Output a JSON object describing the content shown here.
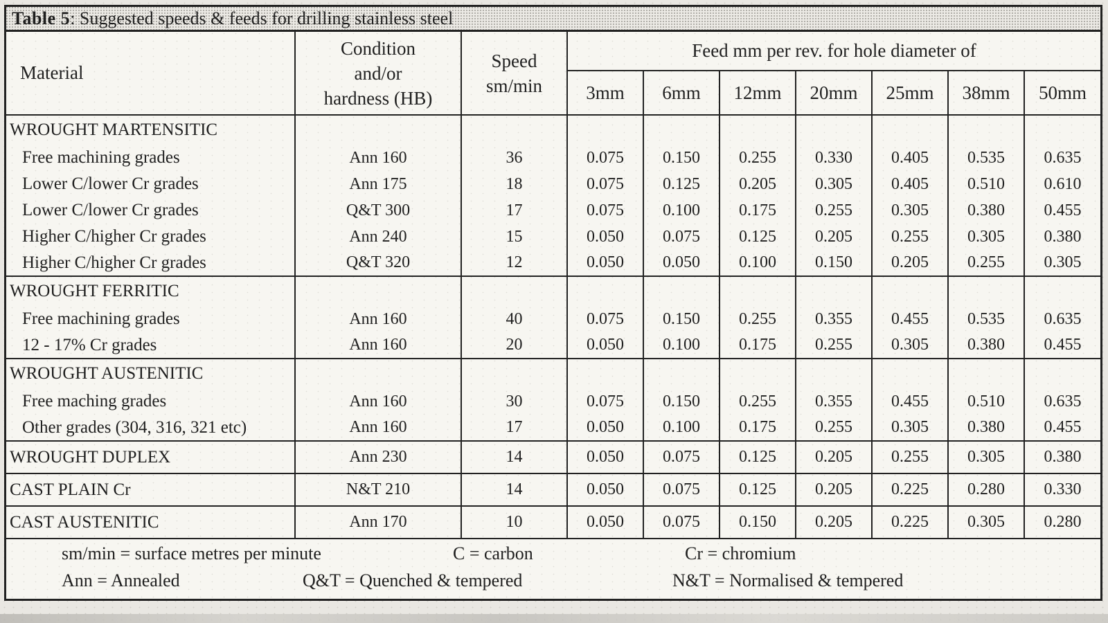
{
  "title": {
    "bold": "Table 5",
    "rest": ": Suggested speeds & feeds for drilling stainless steel"
  },
  "header": {
    "material": "Material",
    "condition_lines": [
      "Condition",
      "and/or",
      "hardness (HB)"
    ],
    "speed_lines": [
      "Speed",
      "sm/min"
    ],
    "feed_group": "Feed mm per rev. for hole diameter of",
    "diameters": [
      "3mm",
      "6mm",
      "12mm",
      "20mm",
      "25mm",
      "38mm",
      "50mm"
    ]
  },
  "sections": [
    {
      "group": "WROUGHT MARTENSITIC",
      "rows": [
        {
          "material": "Free machining grades",
          "indent": true,
          "condition": "Ann 160",
          "speed": "36",
          "feeds": [
            "0.075",
            "0.150",
            "0.255",
            "0.330",
            "0.405",
            "0.535",
            "0.635"
          ]
        },
        {
          "material": "Lower C/lower Cr grades",
          "indent": true,
          "condition": "Ann 175",
          "speed": "18",
          "feeds": [
            "0.075",
            "0.125",
            "0.205",
            "0.305",
            "0.405",
            "0.510",
            "0.610"
          ]
        },
        {
          "material": "Lower C/lower Cr grades",
          "indent": true,
          "condition": "Q&T 300",
          "speed": "17",
          "feeds": [
            "0.075",
            "0.100",
            "0.175",
            "0.255",
            "0.305",
            "0.380",
            "0.455"
          ]
        },
        {
          "material": "Higher C/higher Cr grades",
          "indent": true,
          "condition": "Ann 240",
          "speed": "15",
          "feeds": [
            "0.050",
            "0.075",
            "0.125",
            "0.205",
            "0.255",
            "0.305",
            "0.380"
          ]
        },
        {
          "material": "Higher C/higher Cr grades",
          "indent": true,
          "condition": "Q&T 320",
          "speed": "12",
          "feeds": [
            "0.050",
            "0.050",
            "0.100",
            "0.150",
            "0.205",
            "0.255",
            "0.305"
          ]
        }
      ]
    },
    {
      "group": "WROUGHT FERRITIC",
      "rows": [
        {
          "material": "Free machining grades",
          "indent": true,
          "condition": "Ann 160",
          "speed": "40",
          "feeds": [
            "0.075",
            "0.150",
            "0.255",
            "0.355",
            "0.455",
            "0.535",
            "0.635"
          ]
        },
        {
          "material": "12 - 17% Cr grades",
          "indent": true,
          "condition": "Ann 160",
          "speed": "20",
          "feeds": [
            "0.050",
            "0.100",
            "0.175",
            "0.255",
            "0.305",
            "0.380",
            "0.455"
          ]
        }
      ]
    },
    {
      "group": "WROUGHT AUSTENITIC",
      "rows": [
        {
          "material": "Free maching grades",
          "indent": true,
          "condition": "Ann 160",
          "speed": "30",
          "feeds": [
            "0.075",
            "0.150",
            "0.255",
            "0.355",
            "0.455",
            "0.510",
            "0.635"
          ]
        },
        {
          "material": "Other grades (304, 316, 321 etc)",
          "indent": true,
          "condition": "Ann 160",
          "speed": "17",
          "feeds": [
            "0.050",
            "0.100",
            "0.175",
            "0.255",
            "0.305",
            "0.380",
            "0.455"
          ]
        }
      ]
    },
    {
      "group": null,
      "rows": [
        {
          "material": "WROUGHT DUPLEX",
          "indent": false,
          "condition": "Ann 230",
          "speed": "14",
          "feeds": [
            "0.050",
            "0.075",
            "0.125",
            "0.205",
            "0.255",
            "0.305",
            "0.380"
          ]
        }
      ]
    },
    {
      "group": null,
      "rows": [
        {
          "material": "CAST PLAIN Cr",
          "indent": false,
          "condition": "N&T 210",
          "speed": "14",
          "feeds": [
            "0.050",
            "0.075",
            "0.125",
            "0.205",
            "0.225",
            "0.280",
            "0.330"
          ]
        }
      ]
    },
    {
      "group": null,
      "rows": [
        {
          "material": "CAST AUSTENITIC",
          "indent": false,
          "condition": "Ann 170",
          "speed": "10",
          "feeds": [
            "0.050",
            "0.075",
            "0.150",
            "0.205",
            "0.225",
            "0.305",
            "0.280"
          ]
        }
      ]
    }
  ],
  "footer": {
    "line1": [
      "sm/min = surface metres per minute",
      "C = carbon",
      "Cr = chromium"
    ],
    "line2": [
      "Ann = Annealed",
      "Q&T = Quenched & tempered",
      "N&T = Normalised & tempered"
    ]
  },
  "colors": {
    "ink": "#222222",
    "paper": "#f7f6f1",
    "page_background": "#e9e7e2",
    "title_halftone_dot": "#a5a39c"
  }
}
